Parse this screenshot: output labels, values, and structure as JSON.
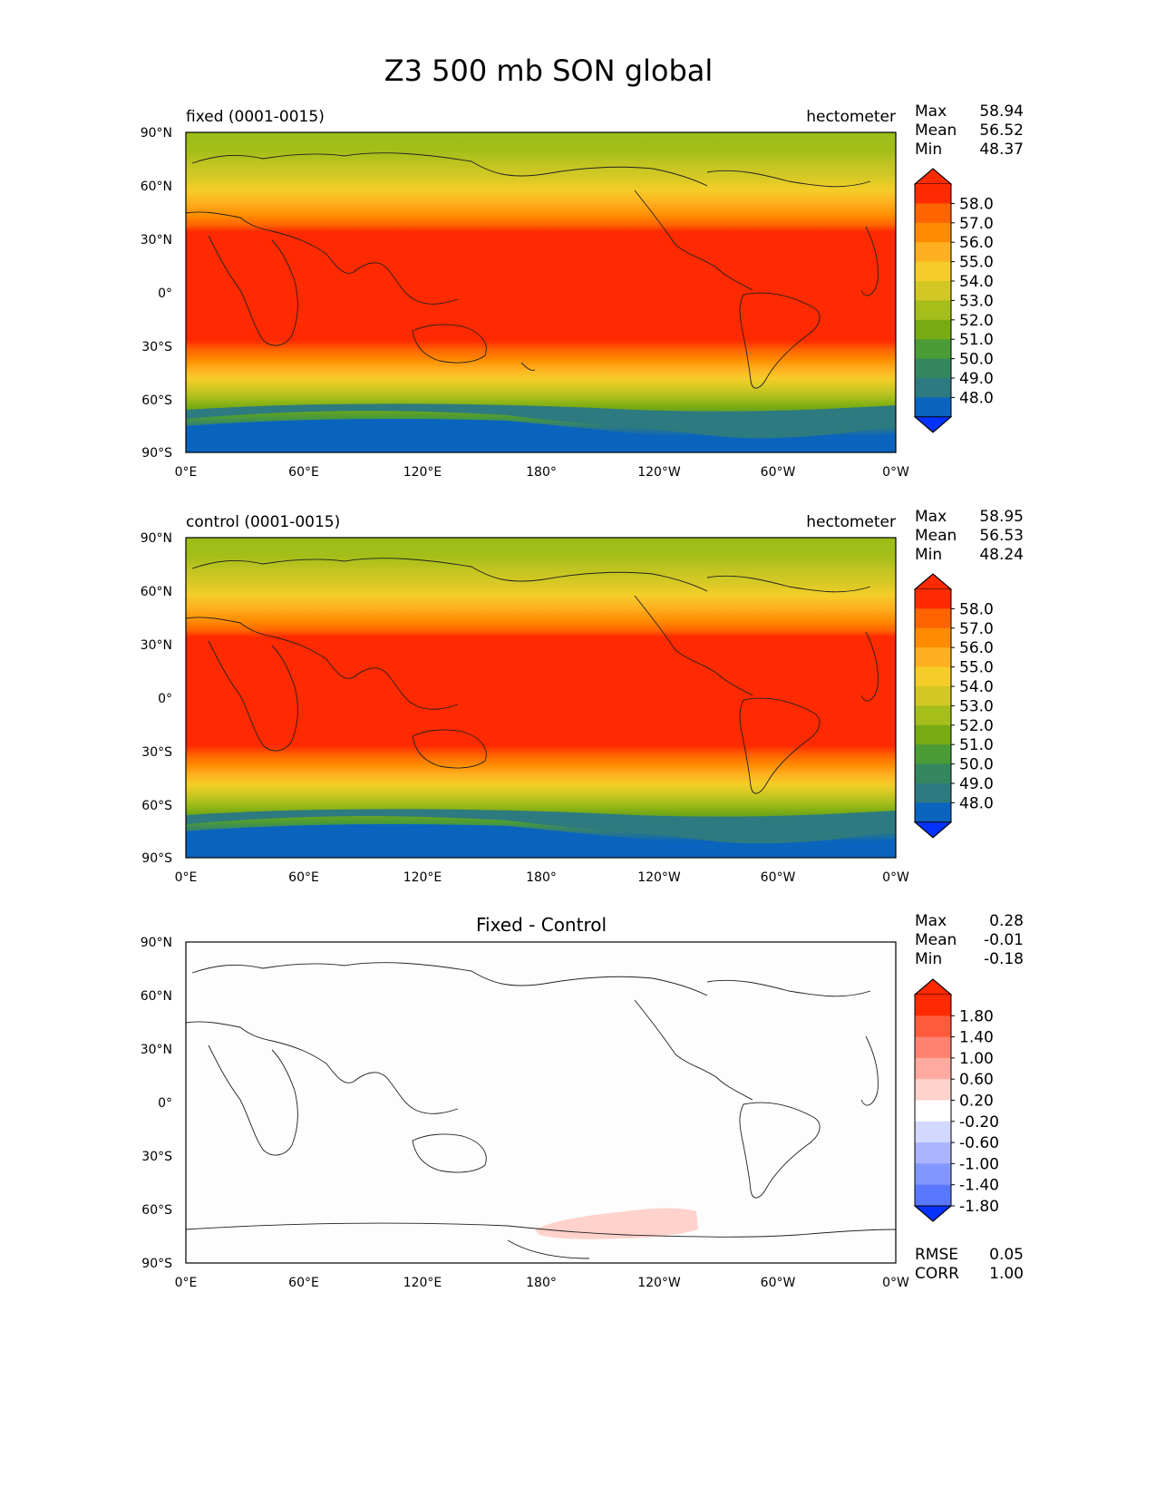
{
  "figure": {
    "title": "Z3 500 mb SON global"
  },
  "axes": {
    "lat_ticks": [
      "90°N",
      "60°N",
      "30°N",
      "0°",
      "30°S",
      "60°S",
      "90°S"
    ],
    "lon_ticks": [
      "0°E",
      "60°E",
      "120°E",
      "180°",
      "120°W",
      "60°W",
      "0°W"
    ]
  },
  "panels": [
    {
      "id": "fixed",
      "left_title": "fixed (0001-0015)",
      "right_title": "hectometer",
      "center_title": "",
      "stats": [
        {
          "label": "Max",
          "value": "58.94"
        },
        {
          "label": "Mean",
          "value": "56.52"
        },
        {
          "label": "Min",
          "value": "48.37"
        }
      ]
    },
    {
      "id": "control",
      "left_title": "control (0001-0015)",
      "right_title": "hectometer",
      "center_title": "",
      "stats": [
        {
          "label": "Max",
          "value": "58.95"
        },
        {
          "label": "Mean",
          "value": "56.53"
        },
        {
          "label": "Min",
          "value": "48.24"
        }
      ]
    },
    {
      "id": "diff",
      "left_title": "",
      "right_title": "",
      "center_title": "Fixed - Control",
      "stats": [
        {
          "label": "Max",
          "value": "0.28"
        },
        {
          "label": "Mean",
          "value": "-0.01"
        },
        {
          "label": "Min",
          "value": "-0.18"
        }
      ],
      "footer_stats": [
        {
          "label": "RMSE",
          "value": "0.05"
        },
        {
          "label": "CORR",
          "value": "1.00"
        }
      ]
    }
  ],
  "colorbars": {
    "model": {
      "labels": [
        "58.0",
        "57.0",
        "56.0",
        "55.0",
        "54.0",
        "53.0",
        "52.0",
        "51.0",
        "50.0",
        "49.0",
        "48.0"
      ],
      "colors_top_to_bottom": [
        "#ff2a00",
        "#ff6400",
        "#ff8c00",
        "#ffb020",
        "#f5cd28",
        "#d2c823",
        "#a5be19",
        "#78aa14",
        "#4b9b37",
        "#33865e",
        "#2d7a80",
        "#0a64be",
        "#0532ff"
      ]
    },
    "diff": {
      "labels": [
        "1.80",
        "1.40",
        "1.00",
        "0.60",
        "0.20",
        "-0.20",
        "-0.60",
        "-1.00",
        "-1.40",
        "-1.80"
      ],
      "colors_top_to_bottom": [
        "#ff2a00",
        "#ff5a3c",
        "#ff8270",
        "#ffaaa0",
        "#ffd2cc",
        "#ffffff",
        "#d2d8ff",
        "#aab4ff",
        "#8296ff",
        "#5a78ff",
        "#0532ff"
      ]
    }
  },
  "map_data": {
    "field": "Z3 500 mb geopotential height",
    "units": "hectometer",
    "zonal_bands_model": [
      {
        "lat_from": 90,
        "lat_to": 75,
        "value_range": "52.0-53.0"
      },
      {
        "lat_from": 75,
        "lat_to": 60,
        "value_range": "53.0-55.0"
      },
      {
        "lat_from": 60,
        "lat_to": 40,
        "value_range": "55.0-58.0"
      },
      {
        "lat_from": 40,
        "lat_to": -28,
        "value_range": ">58.0"
      },
      {
        "lat_from": -28,
        "lat_to": -50,
        "value_range": "53.0-58.0"
      },
      {
        "lat_from": -50,
        "lat_to": -62,
        "value_range": "50.0-53.0"
      },
      {
        "lat_from": -62,
        "lat_to": -72,
        "value_range": "49.0-50.0"
      },
      {
        "lat_from": -72,
        "lat_to": -90,
        "value_range": "48.0-49.0"
      }
    ],
    "diff_anomaly": {
      "region": "Southern Ocean / Antarctica near 180°-140°W",
      "value_range": "0.20-0.60"
    }
  }
}
